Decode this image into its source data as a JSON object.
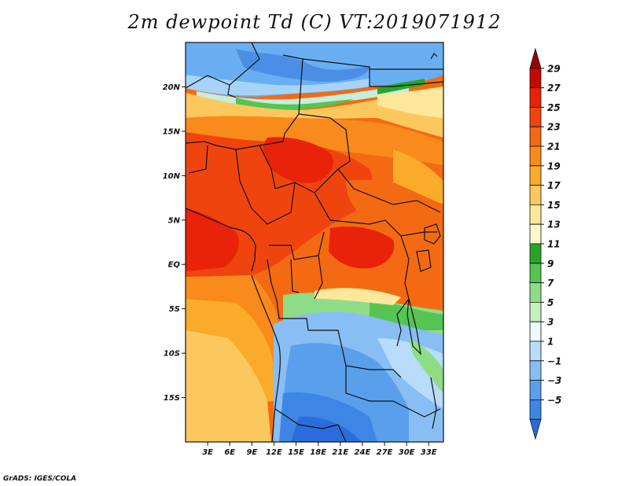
{
  "title": "2m dewpoint Td (C) VT:2019071912",
  "credit": "GrADS: IGES/COLA",
  "map": {
    "lat_labels": [
      "20N",
      "15N",
      "10N",
      "5N",
      "EQ",
      "5S",
      "10S",
      "15S"
    ],
    "lat_values": [
      20,
      15,
      10,
      5,
      0,
      -5,
      -10,
      -15
    ],
    "lon_labels": [
      "3E",
      "6E",
      "9E",
      "12E",
      "15E",
      "18E",
      "21E",
      "24E",
      "27E",
      "30E",
      "33E"
    ],
    "lon_values": [
      3,
      6,
      9,
      12,
      15,
      18,
      21,
      24,
      27,
      30,
      33
    ],
    "lon_range": [
      0,
      35
    ],
    "lat_range": [
      -20,
      25
    ]
  },
  "colorbar": {
    "labels": [
      "29",
      "27",
      "25",
      "23",
      "21",
      "19",
      "17",
      "15",
      "13",
      "11",
      "9",
      "7",
      "5",
      "3",
      "1",
      "−1",
      "−3",
      "−5"
    ],
    "colors": [
      "#9b0000",
      "#c40a00",
      "#e8230a",
      "#f0440f",
      "#f46a13",
      "#f88b1c",
      "#fbab2a",
      "#fcc85e",
      "#fde79a",
      "#fcfac9",
      "#28a528",
      "#55c453",
      "#8fdc87",
      "#c5f0c0",
      "#ecfbfc",
      "#b9dcfa",
      "#88bef4",
      "#5a9fec",
      "#3e86e5",
      "#2a6cdb"
    ]
  }
}
